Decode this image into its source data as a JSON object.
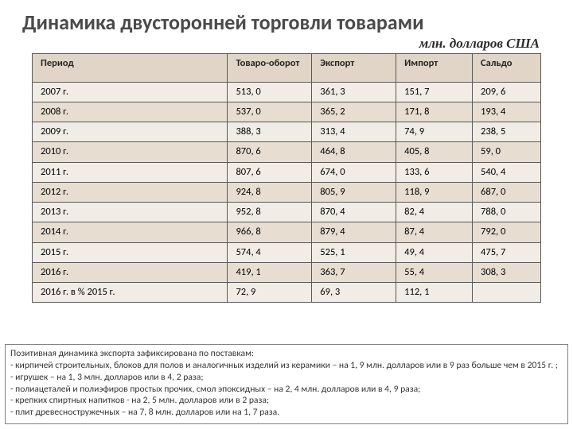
{
  "title": "Динамика двусторонней торговли товарами",
  "subtitle": "млн. долларов США",
  "columns": [
    "Период",
    "Товаро-оборот",
    "Экспорт",
    "Импорт",
    "Сальдо"
  ],
  "rows": [
    [
      "2007 г.",
      "513, 0",
      "361, 3",
      "151, 7",
      "209, 6"
    ],
    [
      "2008 г.",
      "537, 0",
      "365, 2",
      "171, 8",
      "193, 4"
    ],
    [
      "2009 г.",
      "388, 3",
      "313, 4",
      "74, 9",
      "238, 5"
    ],
    [
      "2010 г.",
      "870, 6",
      "464, 8",
      "405, 8",
      "59, 0"
    ],
    [
      "2011 г.",
      "807, 6",
      "674, 0",
      "133, 6",
      "540, 4"
    ],
    [
      "2012 г.",
      "924, 8",
      "805, 9",
      "118, 9",
      "687, 0"
    ],
    [
      "2013 г.",
      "952, 8",
      "870, 4",
      "82, 4",
      "788, 0"
    ],
    [
      "2014 г.",
      "966, 8",
      "879, 4",
      "87, 4",
      "792, 0"
    ],
    [
      "2015 г.",
      "574, 4",
      "525, 1",
      "49, 4",
      "475, 7"
    ],
    [
      "2016 г.",
      "419, 1",
      "363, 7",
      "55, 4",
      "308, 3"
    ],
    [
      "2016 г. в % 2015 г.",
      "72, 9",
      "69, 3",
      "112, 1",
      ""
    ]
  ],
  "header_bg": "#e0d5c7",
  "row_bg_alt": [
    "#f1ece5",
    "#e7ddd1"
  ],
  "border_color": "#595959",
  "note": {
    "lead": "Позитивная динамика экспорта зафиксирована по поставкам:",
    "items": [
      "- кирпичей строительных, блоков для полов и аналогичных изделий из керамики – на 1, 9 млн. долларов или в 9 раз больше чем в 2015 г. ;",
      "- игрушек – на 1, 3 млн. долларов или в 4, 2 раза;",
      "- полиацеталей и полиэфиров простых прочих, смол эпоксидных – на 2, 4 млн. долларов или в 4, 9 раза;",
      "- крепких спиртных напитков - на 2, 5 млн. долларов или в 2 раза;",
      "- плит древесностружечных – на 7, 8 млн. долларов или на 1, 7 раза."
    ]
  }
}
